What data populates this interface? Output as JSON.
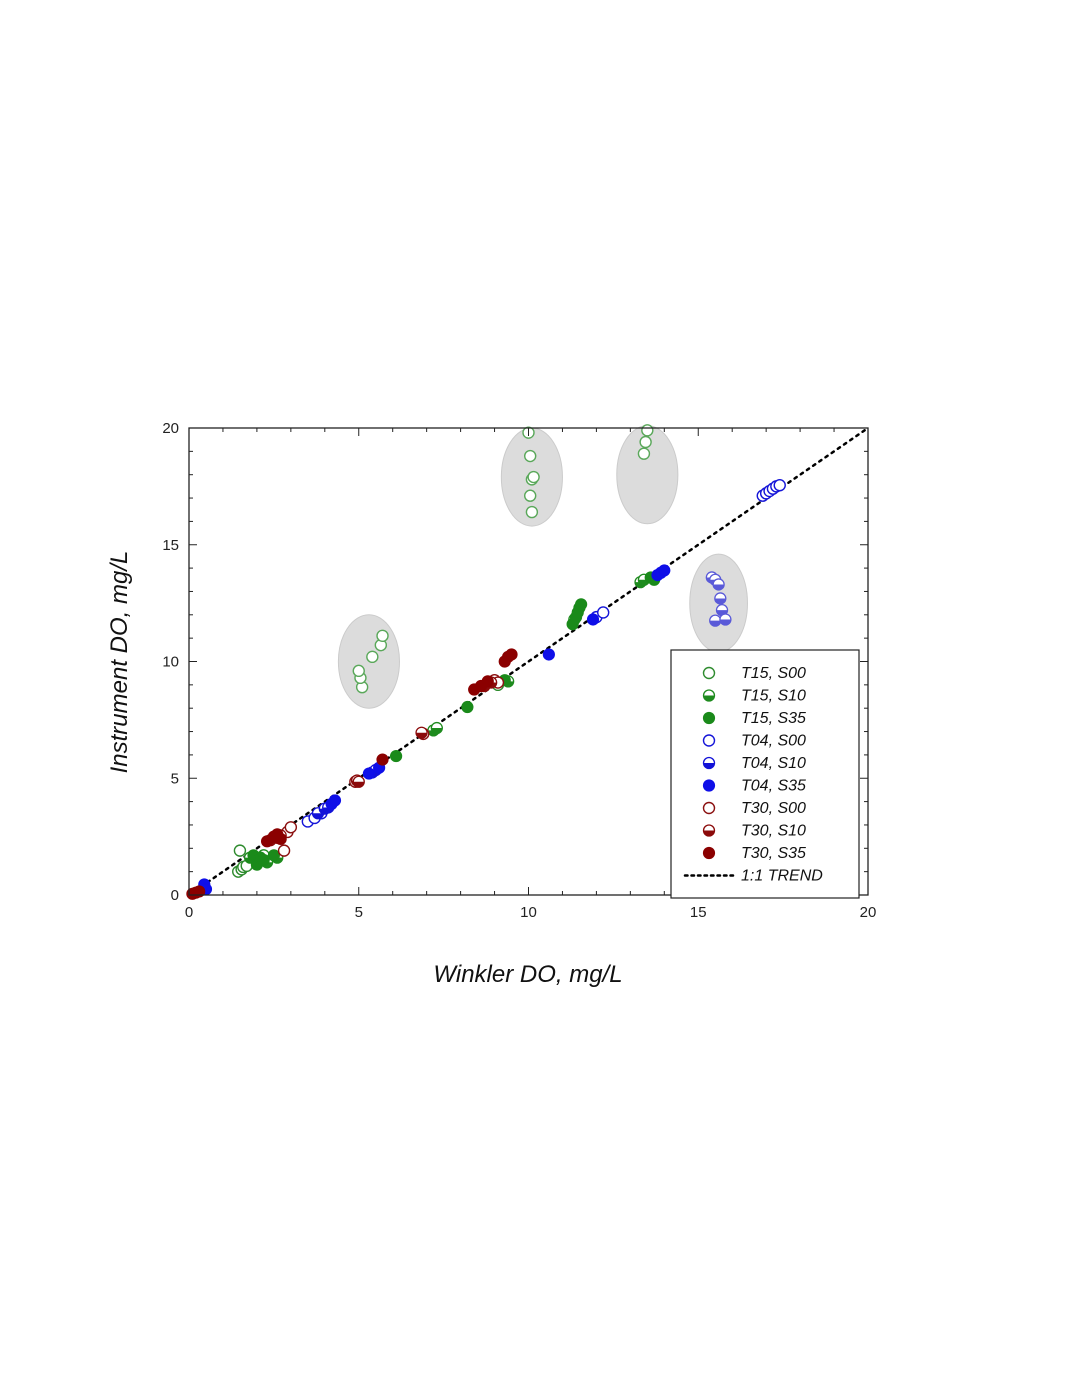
{
  "chart_data": {
    "type": "scatter",
    "title": "",
    "xlabel": "Winkler DO, mg/L",
    "ylabel": "Instrument DO, mg/L",
    "xlim": [
      0,
      20
    ],
    "ylim": [
      0,
      20
    ],
    "xticks": [
      "0",
      "5",
      "10",
      "15",
      "20"
    ],
    "yticks": [
      "0",
      "5",
      "10",
      "15",
      "20"
    ],
    "grid": false,
    "legend_position": "bottom-right",
    "highlight_ellipses": [
      {
        "cx": 5.3,
        "cy": 10.0,
        "rx": 0.9,
        "ry": 2.0
      },
      {
        "cx": 10.1,
        "cy": 17.9,
        "rx": 0.9,
        "ry": 2.1
      },
      {
        "cx": 13.5,
        "cy": 18.0,
        "rx": 0.9,
        "ry": 2.1
      },
      {
        "cx": 15.6,
        "cy": 12.5,
        "rx": 0.85,
        "ry": 2.1
      }
    ],
    "series": [
      {
        "name": "T15, S00",
        "color": "#2e8b2e",
        "marker": "open",
        "points": [
          [
            1.5,
            1.9
          ],
          [
            1.45,
            1.0
          ],
          [
            1.55,
            1.1
          ],
          [
            1.6,
            1.2
          ],
          [
            1.7,
            1.25
          ],
          [
            9.1,
            9.0
          ],
          [
            5.1,
            8.9
          ],
          [
            5.05,
            9.3
          ],
          [
            5.0,
            9.6
          ],
          [
            5.4,
            10.2
          ],
          [
            5.65,
            10.7
          ],
          [
            5.7,
            11.1
          ],
          [
            10.0,
            19.8
          ],
          [
            10.05,
            18.8
          ],
          [
            10.1,
            17.8
          ],
          [
            10.15,
            17.9
          ],
          [
            10.05,
            17.1
          ],
          [
            10.1,
            16.4
          ],
          [
            13.5,
            19.9
          ],
          [
            13.45,
            19.4
          ],
          [
            13.4,
            18.9
          ]
        ]
      },
      {
        "name": "T15, S10",
        "color": "#1e8b1e",
        "marker": "half",
        "points": [
          [
            1.8,
            1.6
          ],
          [
            2.0,
            1.5
          ],
          [
            2.2,
            1.7
          ],
          [
            2.3,
            1.4
          ],
          [
            2.6,
            1.6
          ],
          [
            7.2,
            7.05
          ],
          [
            7.3,
            7.15
          ],
          [
            9.4,
            9.15
          ],
          [
            11.35,
            11.8
          ],
          [
            13.3,
            13.4
          ],
          [
            13.4,
            13.5
          ]
        ]
      },
      {
        "name": "T15, S35",
        "color": "#1a8a1a",
        "marker": "filled",
        "points": [
          [
            1.9,
            1.7
          ],
          [
            2.0,
            1.3
          ],
          [
            2.1,
            1.6
          ],
          [
            2.2,
            1.5
          ],
          [
            2.5,
            1.7
          ],
          [
            6.1,
            5.95
          ],
          [
            8.2,
            8.05
          ],
          [
            9.3,
            9.2
          ],
          [
            11.3,
            11.6
          ],
          [
            11.4,
            11.9
          ],
          [
            11.45,
            12.1
          ],
          [
            11.5,
            12.3
          ],
          [
            11.55,
            12.45
          ],
          [
            13.6,
            13.6
          ],
          [
            13.7,
            13.5
          ]
        ]
      },
      {
        "name": "T04, S00",
        "color": "#1515d8",
        "marker": "open",
        "points": [
          [
            3.5,
            3.15
          ],
          [
            3.7,
            3.3
          ],
          [
            3.9,
            3.5
          ],
          [
            12.0,
            11.9
          ],
          [
            12.2,
            12.1
          ],
          [
            16.9,
            17.1
          ],
          [
            17.0,
            17.2
          ],
          [
            17.1,
            17.3
          ],
          [
            17.2,
            17.4
          ],
          [
            17.3,
            17.5
          ],
          [
            17.4,
            17.55
          ]
        ]
      },
      {
        "name": "T04, S10",
        "color": "#1212d8",
        "marker": "half",
        "points": [
          [
            3.8,
            3.5
          ],
          [
            4.0,
            3.7
          ],
          [
            4.1,
            3.75
          ],
          [
            5.4,
            5.25
          ],
          [
            5.5,
            5.35
          ],
          [
            15.4,
            13.6
          ],
          [
            15.5,
            13.5
          ],
          [
            15.6,
            13.3
          ],
          [
            15.65,
            12.7
          ],
          [
            15.7,
            12.2
          ],
          [
            15.5,
            11.75
          ],
          [
            15.8,
            11.8
          ]
        ]
      },
      {
        "name": "T04, S35",
        "color": "#0f0fe8",
        "marker": "filled",
        "points": [
          [
            0.45,
            0.45
          ],
          [
            0.5,
            0.25
          ],
          [
            4.2,
            3.9
          ],
          [
            4.3,
            4.05
          ],
          [
            5.3,
            5.2
          ],
          [
            5.6,
            5.45
          ],
          [
            10.6,
            10.3
          ],
          [
            11.9,
            11.8
          ],
          [
            13.8,
            13.7
          ],
          [
            13.9,
            13.8
          ],
          [
            14.0,
            13.9
          ]
        ]
      },
      {
        "name": "T30, S00",
        "color": "#8b1010",
        "marker": "open",
        "points": [
          [
            2.8,
            1.9
          ],
          [
            2.9,
            2.7
          ],
          [
            3.0,
            2.9
          ],
          [
            4.9,
            4.85
          ],
          [
            6.9,
            6.9
          ],
          [
            9.0,
            9.2
          ],
          [
            9.1,
            9.1
          ]
        ]
      },
      {
        "name": "T30, S10",
        "color": "#8b0a0a",
        "marker": "half",
        "points": [
          [
            2.4,
            2.35
          ],
          [
            2.6,
            2.45
          ],
          [
            2.7,
            2.55
          ],
          [
            4.95,
            4.9
          ],
          [
            5.0,
            4.85
          ],
          [
            6.85,
            6.95
          ],
          [
            8.7,
            8.95
          ],
          [
            8.9,
            9.1
          ]
        ]
      },
      {
        "name": "T30, S35",
        "color": "#8b0000",
        "marker": "filled",
        "points": [
          [
            0.1,
            0.05
          ],
          [
            0.2,
            0.1
          ],
          [
            0.3,
            0.15
          ],
          [
            2.3,
            2.3
          ],
          [
            2.5,
            2.5
          ],
          [
            2.6,
            2.6
          ],
          [
            2.7,
            2.4
          ],
          [
            5.7,
            5.8
          ],
          [
            8.4,
            8.8
          ],
          [
            8.6,
            8.95
          ],
          [
            8.8,
            9.15
          ],
          [
            9.3,
            10.0
          ],
          [
            9.4,
            10.2
          ],
          [
            9.5,
            10.3
          ]
        ]
      },
      {
        "name": "1:1 TREND",
        "color": "#000000",
        "marker": "line",
        "points": [
          [
            0,
            0
          ],
          [
            20,
            20
          ]
        ]
      }
    ]
  }
}
